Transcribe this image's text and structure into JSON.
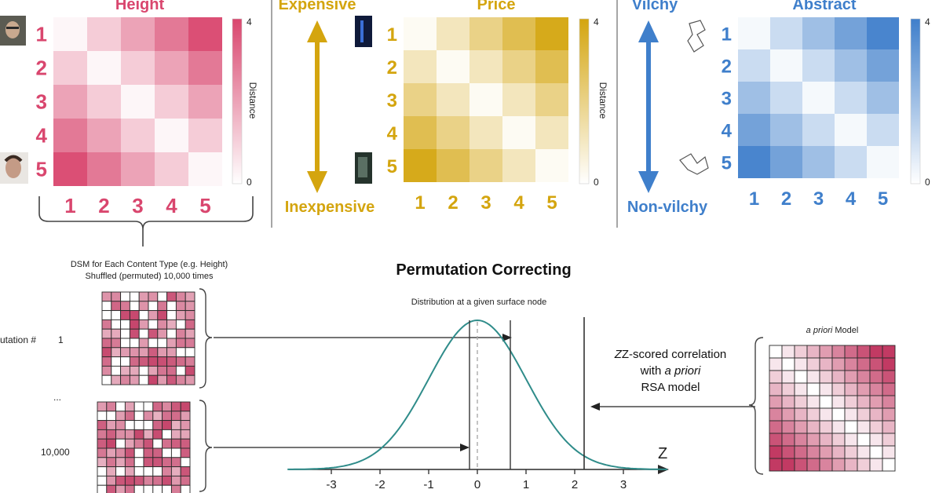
{
  "colors": {
    "height": "#d9466e",
    "price": "#d4a50f",
    "abstract": "#3f7fcb",
    "curve": "#2f8c8a",
    "black": "#111111"
  },
  "panels": [
    {
      "key": "height",
      "title": "Height",
      "legend_label": "Distance",
      "legend_max": "4",
      "legend_min": "0",
      "axis_labels": [
        "1",
        "2",
        "3",
        "4",
        "5"
      ],
      "matrix": [
        [
          0,
          1,
          2,
          3,
          4
        ],
        [
          1,
          0,
          1,
          2,
          3
        ],
        [
          2,
          1,
          0,
          1,
          2
        ],
        [
          3,
          2,
          1,
          0,
          1
        ],
        [
          4,
          3,
          2,
          1,
          0
        ]
      ]
    },
    {
      "key": "price",
      "title": "Price",
      "top_label": "Expensive",
      "bottom_label": "Inexpensive",
      "legend_label": "Distance",
      "legend_max": "4",
      "legend_min": "0",
      "axis_labels": [
        "1",
        "2",
        "3",
        "4",
        "5"
      ],
      "matrix": [
        [
          0,
          1,
          2,
          3,
          4
        ],
        [
          1,
          0,
          1,
          2,
          3
        ],
        [
          2,
          1,
          0,
          1,
          2
        ],
        [
          3,
          2,
          1,
          0,
          1
        ],
        [
          4,
          3,
          2,
          1,
          0
        ]
      ]
    },
    {
      "key": "abstract",
      "title": "Abstract",
      "top_label": "Vilchy",
      "bottom_label": "Non-vilchy",
      "legend_max": "4",
      "legend_min": "0",
      "axis_labels": [
        "1",
        "2",
        "3",
        "4",
        "5"
      ],
      "matrix": [
        [
          0,
          1,
          2,
          3,
          4
        ],
        [
          1,
          0,
          1,
          2,
          3
        ],
        [
          2,
          1,
          0,
          1,
          2
        ],
        [
          3,
          2,
          1,
          0,
          1
        ],
        [
          4,
          3,
          2,
          1,
          0
        ]
      ]
    }
  ],
  "bottom": {
    "title": "Permutation Correcting",
    "dsm_caption_line1": "DSM for Each Content Type (e.g. Height)",
    "dsm_caption_line2": "Shuffled (permuted) 10,000 times",
    "permutation_label": "utation #",
    "perm_first": "1",
    "perm_ellipsis": "...",
    "perm_last": "10,000",
    "distribution_caption": "Distribution at a given surface node",
    "z_label": "Z",
    "z_ticks": [
      "-3",
      "-2",
      "-1",
      "0",
      "1",
      "2",
      "3"
    ],
    "model_title": "a priori Model",
    "model_title_italic": "a priori",
    "model_title_rest": " Model",
    "zscore_line1": "Z-scored correlation",
    "zscore_line2_a": "with ",
    "zscore_line2_b": "a priori",
    "zscore_line3": "RSA model"
  }
}
